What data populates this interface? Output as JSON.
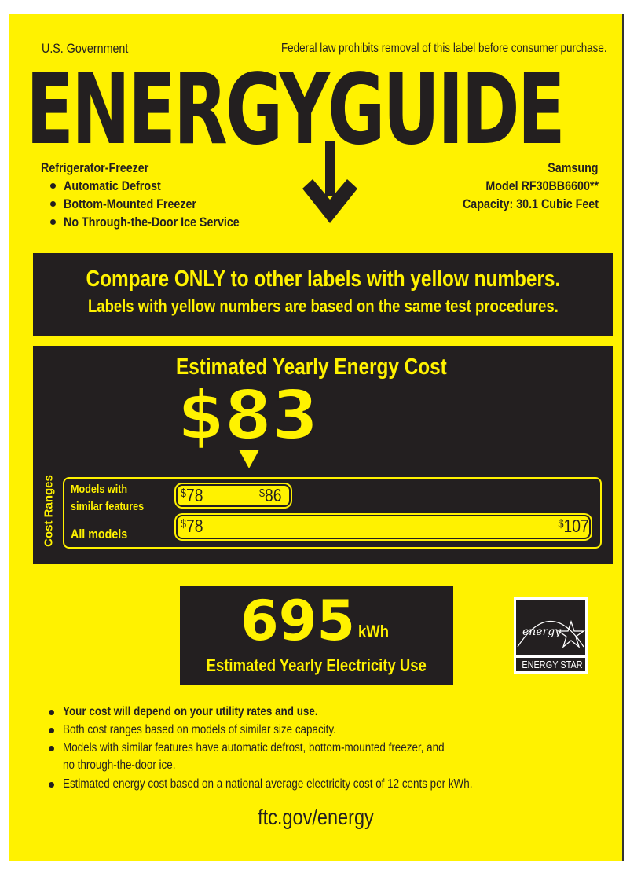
{
  "header": {
    "left": "U.S. Government",
    "right": "Federal law prohibits removal of this label before consumer purchase.",
    "logo": "ENERGYGUIDE"
  },
  "product": {
    "type": "Refrigerator-Freezer",
    "features": [
      "Automatic Defrost",
      "Bottom-Mounted Freezer",
      "No Through-the-Door Ice Service"
    ],
    "brand": "Samsung",
    "model": "Model RF30BB6600**",
    "capacity": "Capacity: 30.1 Cubic Feet"
  },
  "compare": {
    "line1": "Compare ONLY to other labels with yellow numbers.",
    "line2": "Labels with yellow numbers are based on the same test procedures."
  },
  "cost": {
    "title": "Estimated Yearly Energy Cost",
    "value": "$83",
    "ranges_label": "Cost Ranges",
    "similar": {
      "label_1": "Models with",
      "label_2": "similar features",
      "min_sym": "$",
      "min": "78",
      "max_sym": "$",
      "max": "86"
    },
    "all": {
      "label": "All models",
      "min_sym": "$",
      "min": "78",
      "max_sym": "$",
      "max": "107"
    }
  },
  "usage": {
    "value": "695",
    "unit": "kWh",
    "label": "Estimated Yearly Electricity Use"
  },
  "energy_star": {
    "script": "energy",
    "label": "ENERGY STAR"
  },
  "notes": [
    "Your cost will depend on your utility rates and use.",
    "Both cost ranges based on models of similar size capacity.",
    "Models with similar features have automatic defrost, bottom-mounted freezer, and",
    "no through-the-door ice.",
    "Estimated energy cost based on a national average electricity cost of 12 cents per kWh."
  ],
  "footer": "ftc.gov/energy",
  "colors": {
    "yellow": "#fff200",
    "dark": "#231f20"
  }
}
